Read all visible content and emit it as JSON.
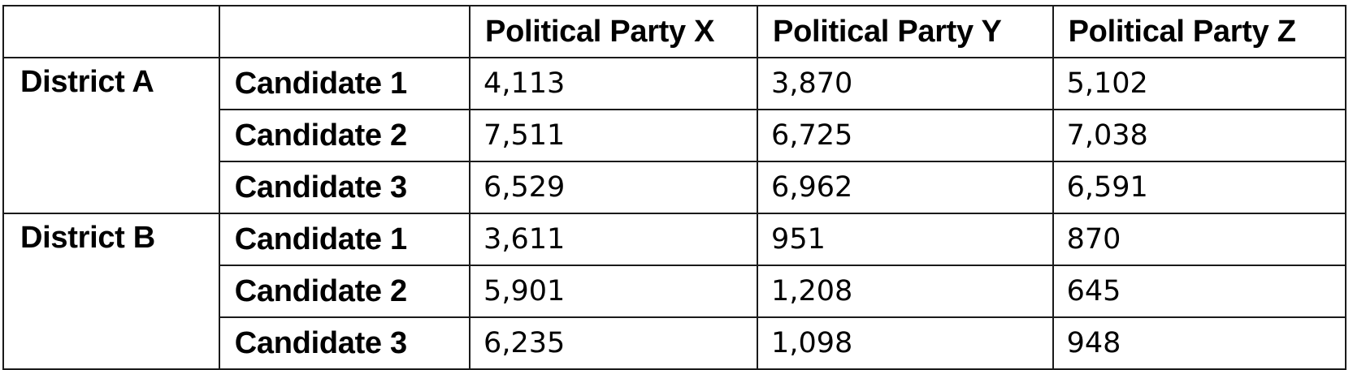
{
  "table": {
    "columns": [
      "",
      "",
      "Political Party X",
      "Political Party Y",
      "Political Party Z"
    ],
    "districts": [
      {
        "name": "District A",
        "rows": [
          {
            "candidate": "Candidate 1",
            "values": [
              "4,113",
              "3,870",
              "5,102"
            ]
          },
          {
            "candidate": "Candidate 2",
            "values": [
              "7,511",
              "6,725",
              "7,038"
            ]
          },
          {
            "candidate": "Candidate 3",
            "values": [
              "6,529",
              "6,962",
              "6,591"
            ]
          }
        ]
      },
      {
        "name": "District B",
        "rows": [
          {
            "candidate": "Candidate 1",
            "values": [
              "3,611",
              "951",
              "870"
            ]
          },
          {
            "candidate": "Candidate 2",
            "values": [
              "5,901",
              "1,208",
              "645"
            ]
          },
          {
            "candidate": "Candidate 3",
            "values": [
              "6,235",
              "1,098",
              "948"
            ]
          }
        ]
      }
    ]
  }
}
